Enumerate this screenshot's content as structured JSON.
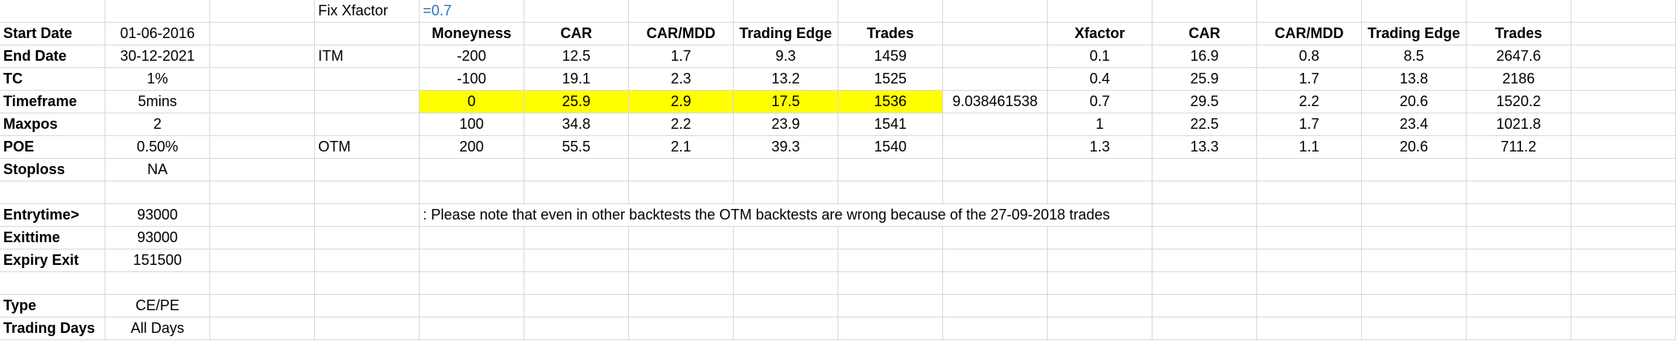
{
  "sheet": {
    "fix_label": "Fix Xfactor",
    "fix_value": "=0.7",
    "params": [
      {
        "label": "Start Date",
        "value": "01-06-2016"
      },
      {
        "label": "End Date",
        "value": "30-12-2021"
      },
      {
        "label": "TC",
        "value": "1%"
      },
      {
        "label": "Timeframe",
        "value": "5mins"
      },
      {
        "label": "Maxpos",
        "value": "2"
      },
      {
        "label": "POE",
        "value": "0.50%"
      },
      {
        "label": "Stoploss",
        "value": "NA"
      },
      {
        "label": "",
        "value": ""
      },
      {
        "label": "Entrytime>",
        "value": "93000"
      },
      {
        "label": "Exittime",
        "value": "93000"
      },
      {
        "label": "Expiry Exit",
        "value": "151500"
      },
      {
        "label": "",
        "value": ""
      },
      {
        "label": "Type",
        "value": "CE/PE"
      },
      {
        "label": "Trading Days",
        "value": "All Days"
      }
    ],
    "side_labels": {
      "itm": "ITM",
      "otm": "OTM"
    },
    "moneyness_headers": [
      "Moneyness",
      "CAR",
      "CAR/MDD",
      "Trading Edge",
      "Trades"
    ],
    "moneyness_rows": [
      [
        "-200",
        "12.5",
        "1.7",
        "9.3",
        "1459"
      ],
      [
        "-100",
        "19.1",
        "2.3",
        "13.2",
        "1525"
      ],
      [
        "0",
        "25.9",
        "2.9",
        "17.5",
        "1536"
      ],
      [
        "100",
        "34.8",
        "2.2",
        "23.9",
        "1541"
      ],
      [
        "200",
        "55.5",
        "2.1",
        "39.3",
        "1540"
      ]
    ],
    "ratio_value": "9.038461538",
    "xfactor_headers": [
      "Xfactor",
      "CAR",
      "CAR/MDD",
      "Trading Edge",
      "Trades"
    ],
    "xfactor_rows": [
      [
        "0.1",
        "16.9",
        "0.8",
        "8.5",
        "2647.6"
      ],
      [
        "0.4",
        "25.9",
        "1.7",
        "13.8",
        "2186"
      ],
      [
        "0.7",
        "29.5",
        "2.2",
        "20.6",
        "1520.2"
      ],
      [
        "1",
        "22.5",
        "1.7",
        "23.4",
        "1021.8"
      ],
      [
        "1.3",
        "13.3",
        "1.1",
        "20.6",
        "711.2"
      ]
    ],
    "note": ": Please note that even in other backtests the OTM backtests are wrong because of the 27-09-2018 trades",
    "colors": {
      "highlight": "#ffff00",
      "formula_text": "#2f75b5",
      "gridline": "#d9d9d9"
    }
  }
}
